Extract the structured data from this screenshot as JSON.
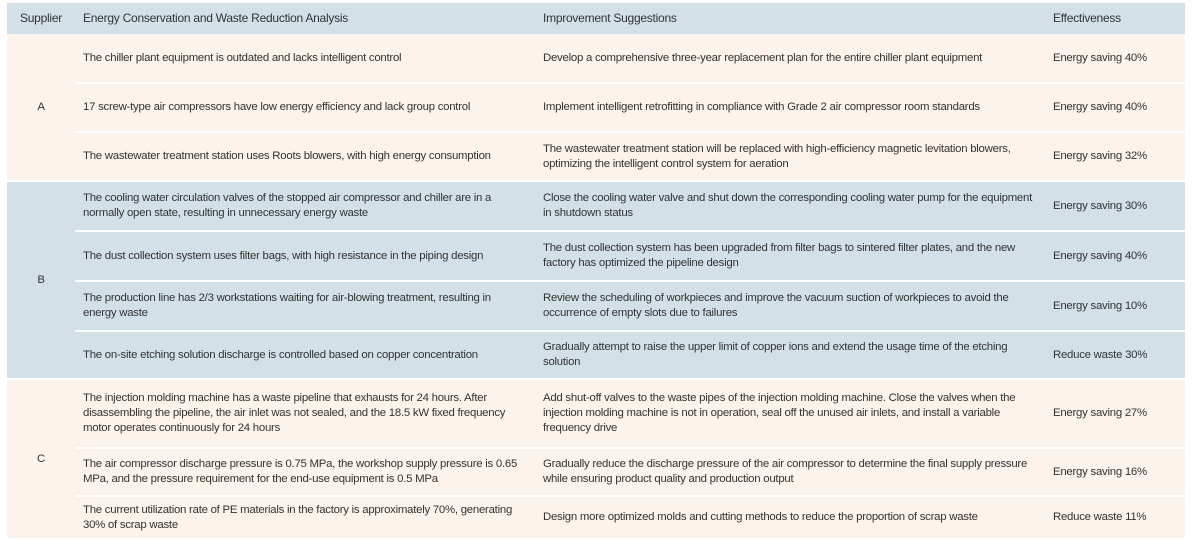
{
  "header": {
    "supplier": "Supplier",
    "analysis": "Energy Conservation and Waste Reduction Analysis",
    "suggestions": "Improvement Suggestions",
    "effectiveness": "Effectiveness"
  },
  "groups": [
    {
      "supplier": "A",
      "color": "#fcf3ec",
      "rows": [
        {
          "analysis": "The chiller plant equipment is outdated and lacks intelligent control",
          "suggestion": "Develop a comprehensive three-year replacement plan for the entire chiller plant equipment",
          "effect": "Energy saving 40%"
        },
        {
          "analysis": "17 screw-type air compressors have low energy efficiency and lack group control",
          "suggestion": "Implement intelligent retrofitting in compliance with Grade 2 air compressor room standards",
          "effect": "Energy saving 40%"
        },
        {
          "analysis": "The wastewater treatment station uses Roots blowers, with high energy consumption",
          "suggestion": "The wastewater treatment station will be replaced with high-efficiency magnetic levitation blowers, optimizing the intelligent control system for aeration",
          "effect": "Energy saving 32%"
        }
      ]
    },
    {
      "supplier": "B",
      "color": "#d3e0e8",
      "rows": [
        {
          "analysis": "The cooling water circulation valves of the stopped air compressor and chiller are in a normally open state, resulting in unnecessary energy waste",
          "suggestion": "Close the cooling water valve and shut down the corresponding cooling water pump for the equipment in shutdown status",
          "effect": "Energy saving 30%"
        },
        {
          "analysis": "The dust collection system uses filter bags, with high resistance in the piping design",
          "suggestion": "The dust collection system has been upgraded from filter bags to sintered filter plates, and the new factory has optimized the pipeline design",
          "effect": "Energy saving 40%"
        },
        {
          "analysis": "The production line has 2/3 workstations waiting for air-blowing treatment, resulting in energy waste",
          "suggestion": "Review the scheduling of workpieces and improve the vacuum suction of workpieces to avoid the occurrence of empty slots due to failures",
          "effect": "Energy saving 10%"
        },
        {
          "analysis": "The on-site etching solution discharge is controlled based on copper concentration",
          "suggestion": "Gradually attempt to raise the upper limit of copper ions and extend the usage time of the etching solution",
          "effect": "Reduce waste 30%"
        }
      ]
    },
    {
      "supplier": "C",
      "color": "#fcf3ec",
      "rows": [
        {
          "analysis": "The injection molding machine has a waste pipeline that exhausts for 24 hours. After disassembling the pipeline, the air inlet was not sealed, and the 18.5 kW fixed frequency motor operates continuously for 24 hours",
          "suggestion": "Add shut-off valves to the waste pipes of the injection molding machine. Close the valves when the injection molding machine is not in operation, seal off the unused air inlets, and install a variable frequency drive",
          "effect": "Energy saving 27%"
        },
        {
          "analysis": "The air compressor discharge pressure is 0.75 MPa, the workshop supply pressure is 0.65 MPa, and the pressure requirement for the end-use equipment is 0.5 MPa",
          "suggestion": "Gradually reduce the discharge pressure of the air compressor to determine the final supply pressure while ensuring product quality and production output",
          "effect": "Energy saving 16%"
        },
        {
          "analysis": "The current utilization rate of PE materials in the factory is approximately 70%, generating 30% of scrap waste",
          "suggestion": "Design more optimized molds and cutting methods to reduce the proportion of scrap waste",
          "effect": "Reduce waste 11%"
        }
      ]
    }
  ]
}
